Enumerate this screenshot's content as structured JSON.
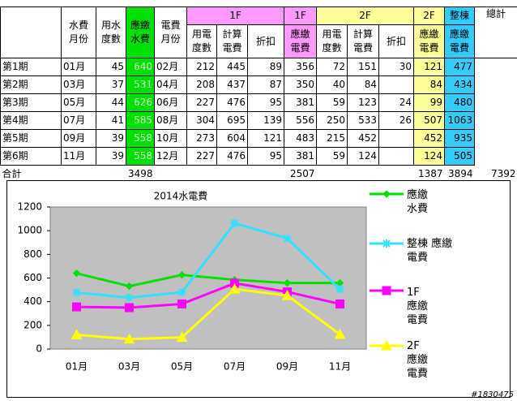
{
  "table": {
    "header_top": [
      "水費\n月份",
      "用水\n度數",
      "應繳\n水費",
      "電費\n月份",
      "1F",
      "1F",
      "2F",
      "2F",
      "整棟",
      "總計"
    ],
    "header_sub": [
      "用電\n度數",
      "計算\n電費",
      "折扣",
      "應繳\n電費",
      "用電\n度數",
      "計算\n電費",
      "折扣",
      "應繳\n電費",
      "應繳\n電費"
    ],
    "rows": [
      [
        "第1期",
        "01月",
        45,
        640,
        "02月",
        212,
        445,
        89,
        356,
        72,
        151,
        30,
        121,
        477
      ],
      [
        "第2期",
        "03月",
        37,
        531,
        "04月",
        208,
        437,
        87,
        350,
        40,
        84,
        null,
        84,
        434
      ],
      [
        "第3期",
        "05月",
        44,
        626,
        "06月",
        227,
        476,
        95,
        381,
        59,
        123,
        24,
        99,
        480
      ],
      [
        "第4期",
        "07月",
        41,
        585,
        "08月",
        304,
        695,
        139,
        556,
        250,
        533,
        26,
        507,
        1063
      ],
      [
        "第5期",
        "09月",
        39,
        558,
        "10月",
        273,
        604,
        121,
        483,
        215,
        452,
        null,
        452,
        935
      ],
      [
        "第6期",
        "11月",
        39,
        558,
        "12月",
        227,
        476,
        95,
        381,
        59,
        124,
        null,
        124,
        505
      ]
    ],
    "totals": [
      "合計",
      null,
      null,
      3498,
      null,
      null,
      null,
      null,
      2507,
      null,
      null,
      null,
      1387,
      3894,
      7392
    ]
  },
  "chart_data": {
    "type": "line",
    "title": "2014水電費",
    "categories": [
      "01月",
      "03月",
      "05月",
      "07月",
      "09月",
      "11月"
    ],
    "ylim": [
      0,
      1200
    ],
    "yticks": [
      0,
      200,
      400,
      600,
      800,
      1000,
      1200
    ],
    "series": [
      {
        "name": "應繳\n水費",
        "color": "#00e000",
        "values": [
          640,
          531,
          626,
          585,
          558,
          558
        ]
      },
      {
        "name": "整棟 應繳\n電費",
        "color": "#33e0ff",
        "values": [
          477,
          434,
          480,
          1063,
          935,
          505
        ]
      },
      {
        "name": "1F\n應繳\n電費",
        "color": "#ff00ff",
        "values": [
          356,
          350,
          381,
          556,
          483,
          381
        ]
      },
      {
        "name": "2F\n應繳\n電費",
        "color": "#ffff00",
        "values": [
          121,
          84,
          99,
          507,
          452,
          124
        ]
      }
    ]
  },
  "watermark": "#1830475"
}
